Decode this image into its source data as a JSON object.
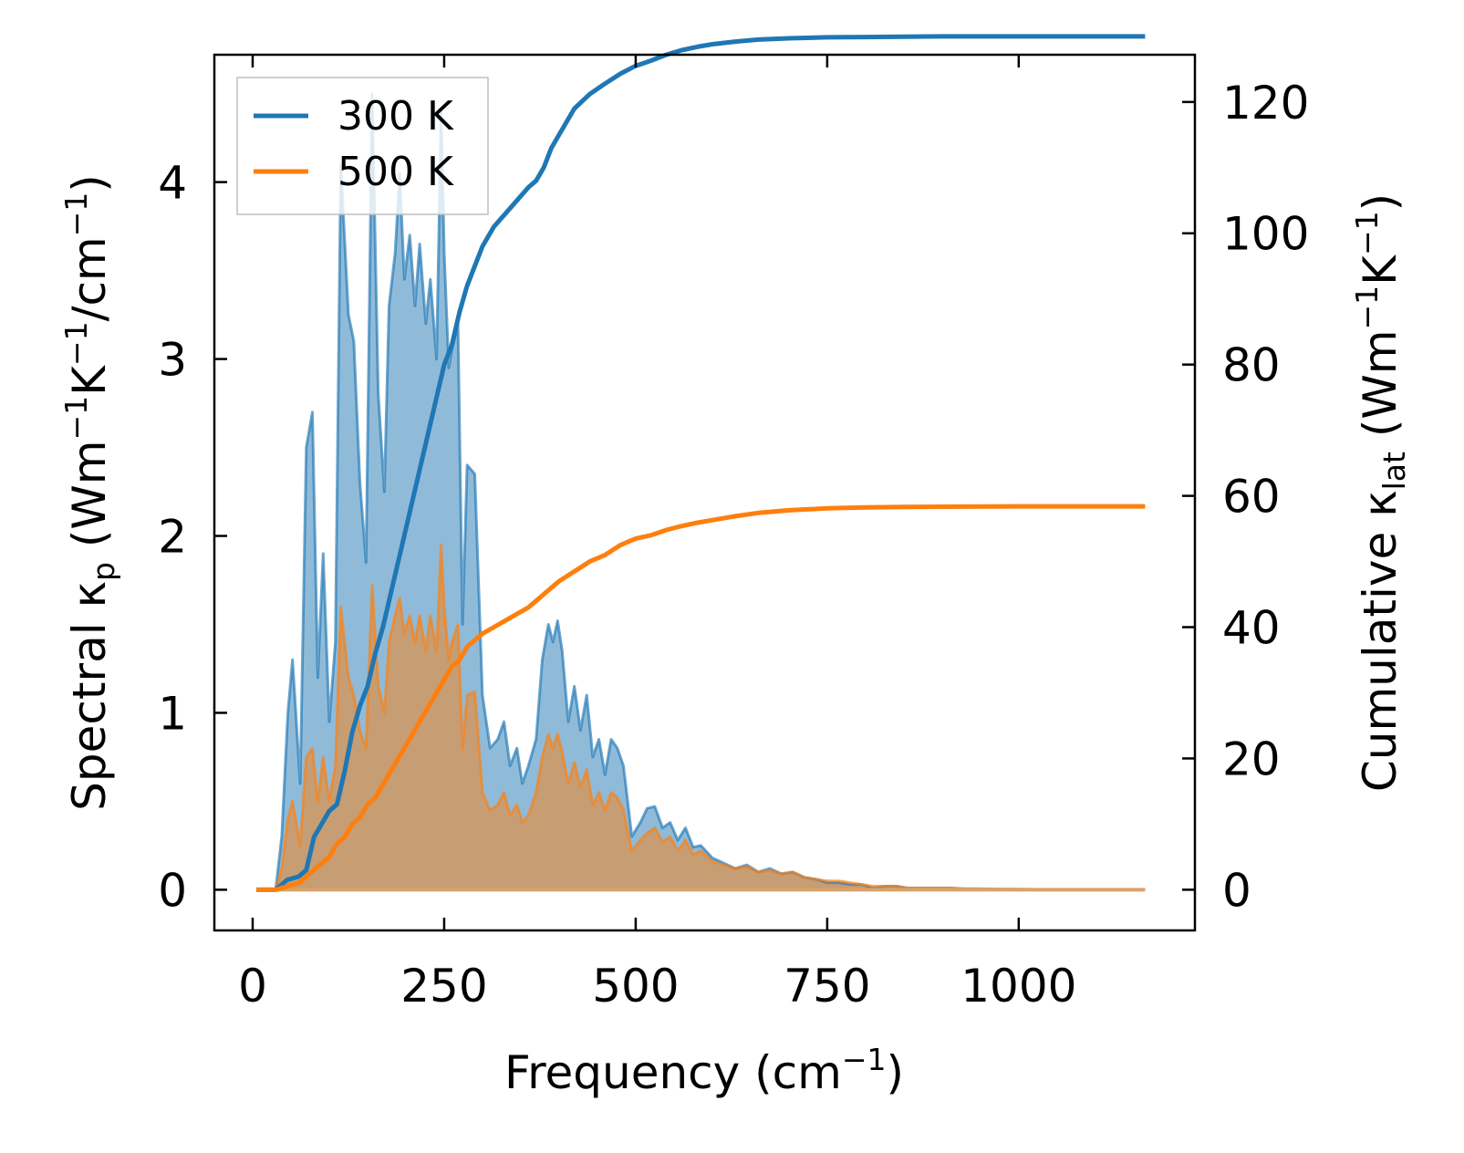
{
  "chart_data": {
    "type": "line",
    "title": "",
    "xlabel": "Frequency (cm",
    "xlabel_sup": "−1",
    "xlabel_close": ")",
    "ylabel_left": {
      "pre": "Spectral κ",
      "sub": "p",
      "mid1": " (Wm",
      "sup1": "−1",
      "mid2": "K",
      "sup2": "−1",
      "mid3": "/cm",
      "sup3": "−1",
      "post": ")"
    },
    "ylabel_right": {
      "pre": "Cumulative κ",
      "sub": "lat",
      "mid1": " (Wm",
      "sup1": "−1",
      "mid2": "K",
      "sup2": "−1",
      "post": ")"
    },
    "xlim": [
      -50,
      1230
    ],
    "ylim_left": [
      -0.23,
      4.72
    ],
    "ylim_right": [
      -6.2,
      127.2
    ],
    "xticks": [
      "0",
      "250",
      "500",
      "750",
      "1000"
    ],
    "xtick_values": [
      0,
      250,
      500,
      750,
      1000
    ],
    "yticks_left": [
      "0",
      "1",
      "2",
      "3",
      "4"
    ],
    "ytick_left_values": [
      0,
      1,
      2,
      3,
      4
    ],
    "yticks_right": [
      "0",
      "20",
      "40",
      "60",
      "80",
      "100",
      "120"
    ],
    "ytick_right_values": [
      0,
      20,
      40,
      60,
      80,
      100,
      120
    ],
    "legend": {
      "position": "upper-left",
      "entries": [
        "300 K",
        "500 K"
      ]
    },
    "colors": {
      "300 K": "#1f77b4",
      "500 K": "#ff7f0e"
    },
    "spectral_series": [
      {
        "name": "300 K",
        "x": [
          5,
          30,
          38,
          46,
          52,
          62,
          70,
          78,
          85,
          92,
          100,
          108,
          115,
          125,
          132,
          140,
          148,
          156,
          164,
          172,
          178,
          186,
          192,
          198,
          205,
          212,
          218,
          226,
          232,
          240,
          246,
          250,
          256,
          260,
          268,
          274,
          280,
          290,
          300,
          310,
          320,
          328,
          336,
          345,
          352,
          360,
          370,
          378,
          386,
          392,
          398,
          404,
          412,
          420,
          428,
          436,
          444,
          452,
          460,
          468,
          476,
          484,
          495,
          506,
          515,
          525,
          535,
          545,
          555,
          565,
          575,
          585,
          600,
          615,
          630,
          645,
          660,
          675,
          690,
          705,
          720,
          735,
          750,
          765,
          780,
          795,
          810,
          825,
          840,
          855,
          870,
          890,
          910,
          930,
          950,
          970,
          990,
          1020,
          1050,
          1080,
          1110,
          1140,
          1165
        ],
        "y": [
          0,
          0,
          0.3,
          1.0,
          1.3,
          0.6,
          2.5,
          2.7,
          1.2,
          1.9,
          0.95,
          1.4,
          4.1,
          3.25,
          3.1,
          2.3,
          1.85,
          4.5,
          2.8,
          2.25,
          3.3,
          3.6,
          4.05,
          3.45,
          3.7,
          3.3,
          3.65,
          3.2,
          3.45,
          3.0,
          4.4,
          3.6,
          2.95,
          3.05,
          3.2,
          1.5,
          2.4,
          2.35,
          1.1,
          0.8,
          0.85,
          0.95,
          0.7,
          0.8,
          0.6,
          0.7,
          0.85,
          1.3,
          1.5,
          1.4,
          1.52,
          1.35,
          0.95,
          1.15,
          0.9,
          1.1,
          0.75,
          0.85,
          0.65,
          0.85,
          0.8,
          0.7,
          0.3,
          0.38,
          0.46,
          0.47,
          0.35,
          0.38,
          0.28,
          0.35,
          0.24,
          0.25,
          0.18,
          0.15,
          0.12,
          0.14,
          0.1,
          0.12,
          0.09,
          0.1,
          0.07,
          0.06,
          0.04,
          0.04,
          0.03,
          0.03,
          0.01,
          0.02,
          0.02,
          0.01,
          0.01,
          0.01,
          0.01,
          0.005,
          0.005,
          0.003,
          0.003,
          0.002,
          0.002,
          0.001,
          0.001,
          0.001,
          0.0
        ]
      },
      {
        "name": "500 K",
        "x": [
          5,
          30,
          38,
          46,
          52,
          62,
          70,
          78,
          85,
          92,
          100,
          108,
          115,
          125,
          132,
          140,
          148,
          156,
          164,
          172,
          178,
          186,
          192,
          198,
          205,
          212,
          218,
          226,
          232,
          240,
          246,
          250,
          256,
          260,
          268,
          274,
          280,
          290,
          300,
          310,
          320,
          328,
          336,
          345,
          352,
          360,
          370,
          378,
          386,
          392,
          398,
          404,
          412,
          420,
          428,
          436,
          444,
          452,
          460,
          468,
          476,
          484,
          495,
          506,
          515,
          525,
          535,
          545,
          555,
          565,
          575,
          585,
          600,
          615,
          630,
          645,
          660,
          675,
          690,
          705,
          720,
          735,
          750,
          765,
          780,
          795,
          810,
          825,
          840,
          855,
          870,
          890,
          910,
          930,
          950,
          970,
          990,
          1020,
          1050,
          1080,
          1110,
          1140,
          1165
        ],
        "y": [
          0,
          0,
          0.12,
          0.4,
          0.5,
          0.25,
          0.75,
          0.8,
          0.5,
          0.75,
          0.5,
          0.7,
          1.6,
          1.2,
          1.1,
          0.9,
          0.8,
          1.72,
          1.15,
          1.0,
          1.4,
          1.55,
          1.65,
          1.45,
          1.55,
          1.4,
          1.55,
          1.35,
          1.55,
          1.35,
          1.95,
          1.6,
          1.3,
          1.4,
          1.5,
          0.8,
          1.1,
          1.12,
          0.55,
          0.45,
          0.48,
          0.55,
          0.42,
          0.48,
          0.38,
          0.42,
          0.55,
          0.75,
          0.88,
          0.8,
          0.88,
          0.78,
          0.6,
          0.72,
          0.58,
          0.68,
          0.48,
          0.55,
          0.45,
          0.55,
          0.52,
          0.45,
          0.22,
          0.28,
          0.32,
          0.35,
          0.27,
          0.3,
          0.22,
          0.28,
          0.2,
          0.22,
          0.16,
          0.14,
          0.12,
          0.13,
          0.1,
          0.11,
          0.09,
          0.1,
          0.07,
          0.06,
          0.05,
          0.05,
          0.04,
          0.03,
          0.02,
          0.02,
          0.02,
          0.01,
          0.01,
          0.01,
          0.01,
          0.005,
          0.005,
          0.003,
          0.003,
          0.002,
          0.002,
          0.001,
          0.001,
          0.001,
          0.0
        ]
      }
    ],
    "cumulative_series": [
      {
        "name": "300 K",
        "x": [
          5,
          30,
          45,
          60,
          70,
          80,
          90,
          100,
          110,
          120,
          130,
          140,
          150,
          160,
          170,
          180,
          190,
          200,
          210,
          220,
          230,
          240,
          250,
          260,
          270,
          280,
          290,
          300,
          315,
          330,
          345,
          360,
          370,
          380,
          390,
          400,
          420,
          440,
          460,
          480,
          500,
          520,
          540,
          560,
          580,
          600,
          630,
          660,
          700,
          750,
          800,
          850,
          900,
          1000,
          1100,
          1165
        ],
        "y": [
          0,
          0,
          1.5,
          2,
          3,
          8,
          10,
          12,
          13,
          18,
          24,
          28,
          31,
          36,
          40,
          45,
          50,
          55,
          60,
          65,
          70,
          75,
          80,
          83,
          88,
          92,
          95,
          98,
          101,
          103,
          105,
          107,
          108,
          110,
          113,
          115,
          119,
          121.2,
          122.8,
          124.3,
          125.5,
          126.3,
          127.2,
          127.9,
          128.4,
          128.8,
          129.2,
          129.5,
          129.7,
          129.85,
          129.9,
          129.95,
          130,
          130,
          130,
          130
        ]
      },
      {
        "name": "500 K",
        "x": [
          5,
          30,
          45,
          60,
          70,
          80,
          90,
          100,
          110,
          120,
          130,
          140,
          150,
          160,
          170,
          180,
          190,
          200,
          210,
          220,
          230,
          240,
          250,
          260,
          270,
          280,
          290,
          300,
          315,
          330,
          345,
          360,
          370,
          380,
          390,
          400,
          420,
          440,
          460,
          480,
          500,
          520,
          540,
          560,
          580,
          600,
          630,
          660,
          700,
          750,
          800,
          850,
          900,
          1000,
          1100,
          1165
        ],
        "y": [
          0,
          0,
          0.5,
          1,
          2,
          3,
          4,
          5,
          7,
          8,
          10,
          11,
          13,
          14,
          16,
          18,
          20,
          22,
          24,
          26,
          28,
          30,
          32,
          34,
          35,
          37,
          38,
          39,
          40,
          41,
          42,
          43,
          44,
          45,
          46,
          47,
          48.5,
          50,
          51,
          52.5,
          53.5,
          54,
          54.8,
          55.4,
          55.9,
          56.3,
          56.9,
          57.4,
          57.8,
          58.1,
          58.25,
          58.3,
          58.35,
          58.4,
          58.4,
          58.4
        ]
      }
    ]
  }
}
